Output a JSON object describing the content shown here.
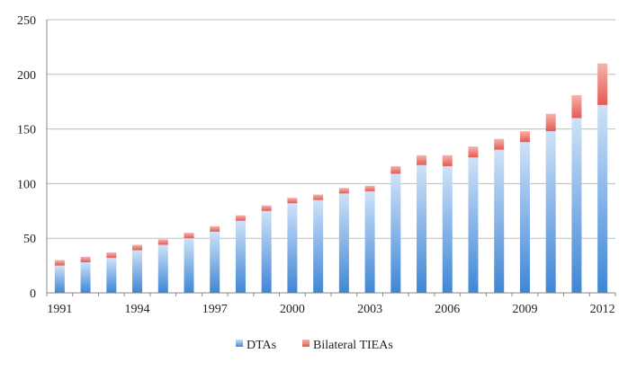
{
  "chart_data": {
    "type": "bar",
    "stacked": true,
    "categories": [
      "1991",
      "1992",
      "1993",
      "1994",
      "1995",
      "1996",
      "1997",
      "1998",
      "1999",
      "2000",
      "2001",
      "2002",
      "2003",
      "2004",
      "2005",
      "2006",
      "2007",
      "2008",
      "2009",
      "2010",
      "2011",
      "2012"
    ],
    "x_tick_labels": [
      "1991",
      "1994",
      "1997",
      "2000",
      "2003",
      "2006",
      "2009",
      "2012"
    ],
    "y_tick_labels": [
      "0",
      "50",
      "100",
      "150",
      "200",
      "250"
    ],
    "ylim": [
      0,
      250
    ],
    "grid": true,
    "legend_position": "bottom",
    "series": [
      {
        "name": "DTAs",
        "color": "#4a90d9",
        "values": [
          25,
          28,
          32,
          39,
          44,
          50,
          56,
          66,
          75,
          82,
          85,
          91,
          93,
          109,
          117,
          116,
          124,
          131,
          138,
          148,
          160,
          172
        ]
      },
      {
        "name": "Bilateral TIEAs",
        "color": "#f07a74",
        "values": [
          5,
          5,
          5,
          5,
          5,
          5,
          5,
          5,
          5,
          5,
          5,
          5,
          5,
          7,
          9,
          10,
          10,
          10,
          10,
          16,
          21,
          38
        ]
      }
    ]
  }
}
